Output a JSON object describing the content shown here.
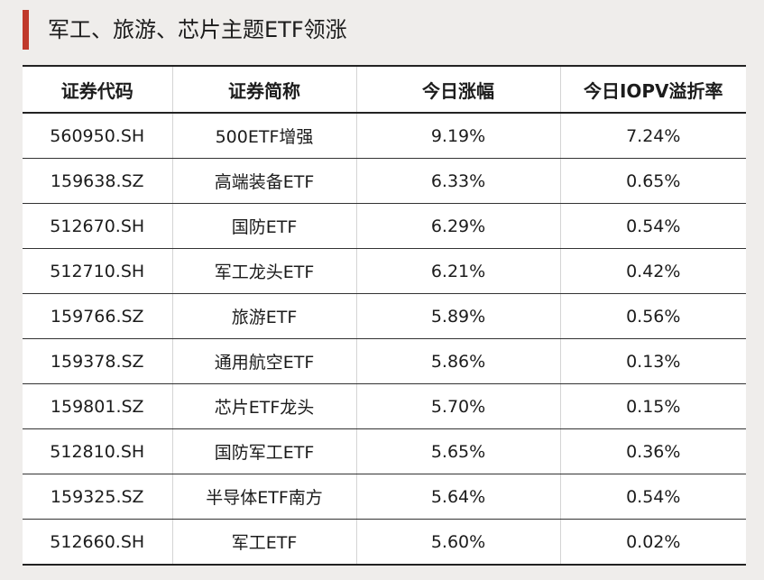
{
  "title": "军工、旅游、芯片主题ETF领涨",
  "table": {
    "headers": [
      "证券代码",
      "证券简称",
      "今日涨幅",
      "今日IOPV溢折率"
    ],
    "rows": [
      [
        "560950.SH",
        "500ETF增强",
        "9.19%",
        "7.24%"
      ],
      [
        "159638.SZ",
        "高端装备ETF",
        "6.33%",
        "0.65%"
      ],
      [
        "512670.SH",
        "国防ETF",
        "6.29%",
        "0.54%"
      ],
      [
        "512710.SH",
        "军工龙头ETF",
        "6.21%",
        "0.42%"
      ],
      [
        "159766.SZ",
        "旅游ETF",
        "5.89%",
        "0.56%"
      ],
      [
        "159378.SZ",
        "通用航空ETF",
        "5.86%",
        "0.13%"
      ],
      [
        "159801.SZ",
        "芯片ETF龙头",
        "5.70%",
        "0.15%"
      ],
      [
        "512810.SH",
        "国防军工ETF",
        "5.65%",
        "0.36%"
      ],
      [
        "159325.SZ",
        "半导体ETF南方",
        "5.64%",
        "0.54%"
      ],
      [
        "512660.SH",
        "军工ETF",
        "5.60%",
        "0.02%"
      ]
    ]
  },
  "colors": {
    "accent": "#c0392b",
    "background": "#efedeb",
    "table_background": "#ffffff"
  }
}
